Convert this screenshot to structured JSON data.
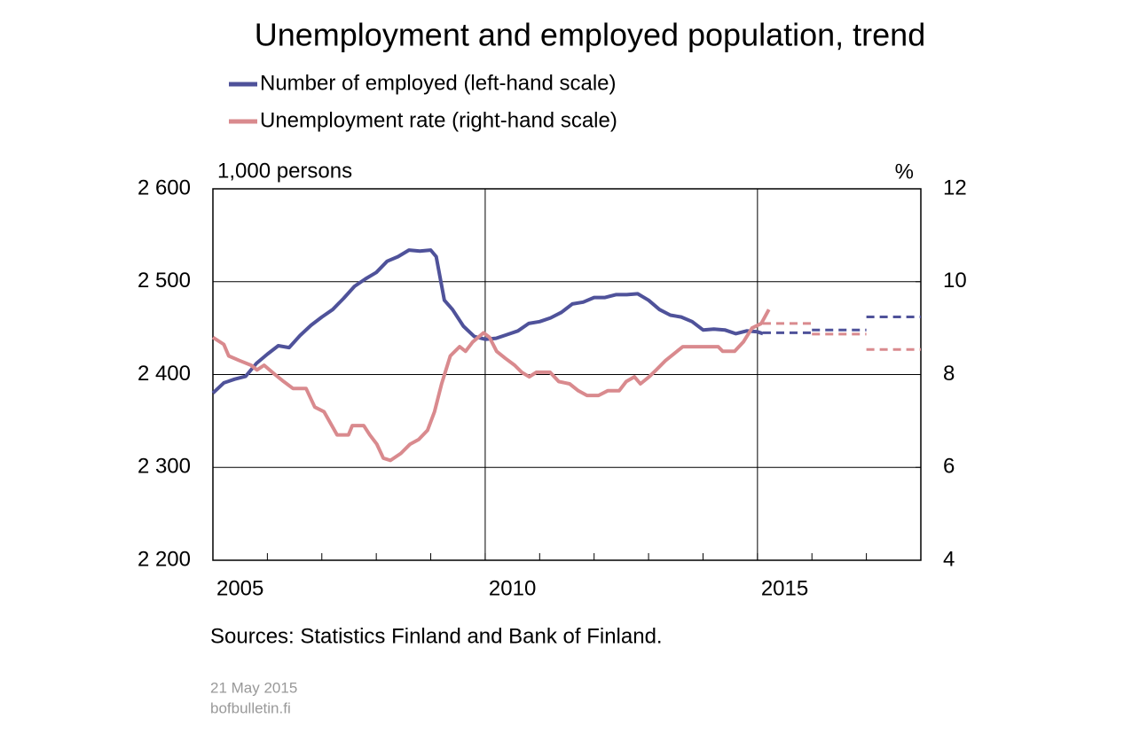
{
  "chart_data": {
    "type": "line",
    "title": "Unemployment and employed population, trend",
    "y_label": "1,000 persons",
    "y2_label": "%",
    "source": "Sources: Statistics Finland and Bank of Finland.",
    "date": "21 May 2015",
    "site": "bofbulletin.fi",
    "xlim": [
      2005,
      2018
    ],
    "xticks": [
      2005,
      2006,
      2007,
      2008,
      2009,
      2010,
      2011,
      2012,
      2013,
      2014,
      2015,
      2016,
      2017,
      2018
    ],
    "xlabels": [
      2005,
      2010,
      2015
    ],
    "xgrid": [
      2010,
      2015
    ],
    "ylim": [
      2200,
      2600
    ],
    "yticks": [
      {
        "value": 2200,
        "label": "2 200"
      },
      {
        "value": 2300,
        "label": "2 300"
      },
      {
        "value": 2400,
        "label": "2 400"
      },
      {
        "value": 2500,
        "label": "2 500"
      },
      {
        "value": 2600,
        "label": "2 600"
      }
    ],
    "y2lim": [
      4,
      12
    ],
    "y2ticks": [
      4,
      6,
      8,
      10,
      12
    ],
    "grid": true,
    "series": [
      {
        "name": "Number of employed (left-hand scale)",
        "color": "#4f529a",
        "x": [
          2005.0,
          2005.2,
          2005.4,
          2005.6,
          2005.8,
          2006.0,
          2006.2,
          2006.4,
          2006.6,
          2006.8,
          2007.0,
          2007.2,
          2007.4,
          2007.6,
          2007.8,
          2008.0,
          2008.2,
          2008.4,
          2008.6,
          2008.8,
          2009.0,
          2009.1,
          2009.25,
          2009.4,
          2009.6,
          2009.8,
          2010.0,
          2010.2,
          2010.4,
          2010.6,
          2010.8,
          2011.0,
          2011.2,
          2011.4,
          2011.6,
          2011.8,
          2012.0,
          2012.2,
          2012.4,
          2012.6,
          2012.8,
          2013.0,
          2013.2,
          2013.4,
          2013.6,
          2013.8,
          2014.0,
          2014.2,
          2014.4,
          2014.6,
          2014.8,
          2015.0,
          2015.1
        ],
        "values": [
          2380,
          2391,
          2395,
          2398,
          2412,
          2422,
          2431,
          2429,
          2442,
          2453,
          2462,
          2470,
          2482,
          2495,
          2503,
          2510,
          2522,
          2527,
          2534,
          2533,
          2534,
          2527,
          2480,
          2470,
          2452,
          2441,
          2438,
          2439,
          2443,
          2447,
          2455,
          2457,
          2461,
          2467,
          2476,
          2478,
          2483,
          2483,
          2486,
          2486,
          2487,
          2480,
          2470,
          2464,
          2462,
          2457,
          2448,
          2449,
          2448,
          2444,
          2447,
          2446,
          2444
        ],
        "forecast": [
          {
            "x": [
              2015.1,
              2016
            ],
            "value": 2445
          },
          {
            "x": [
              2016,
              2017
            ],
            "value": 2448
          },
          {
            "x": [
              2017,
              2018
            ],
            "value": 2462
          }
        ]
      },
      {
        "name": "Unemployment rate (right-hand scale)",
        "color": "#d98a8e",
        "axis": "y2",
        "x": [
          2005.0,
          2005.2,
          2005.29,
          2005.49,
          2005.7,
          2005.81,
          2005.94,
          2006.14,
          2006.3,
          2006.47,
          2006.71,
          2006.87,
          2007.04,
          2007.28,
          2007.49,
          2007.56,
          2007.77,
          2007.88,
          2008.01,
          2008.13,
          2008.26,
          2008.45,
          2008.62,
          2008.78,
          2008.94,
          2009.07,
          2009.2,
          2009.36,
          2009.53,
          2009.64,
          2009.77,
          2009.97,
          2010.08,
          2010.21,
          2010.37,
          2010.54,
          2010.67,
          2010.81,
          2010.94,
          2011.19,
          2011.35,
          2011.55,
          2011.71,
          2011.87,
          2012.08,
          2012.25,
          2012.46,
          2012.59,
          2012.74,
          2012.85,
          2013.01,
          2013.14,
          2013.31,
          2013.47,
          2013.63,
          2013.88,
          2014.28,
          2014.36,
          2014.58,
          2014.74,
          2014.9,
          2015.07,
          2015.21
        ],
        "values": [
          8.8,
          8.65,
          8.4,
          8.3,
          8.2,
          8.1,
          8.2,
          8.0,
          7.85,
          7.7,
          7.7,
          7.3,
          7.2,
          6.7,
          6.7,
          6.9,
          6.9,
          6.7,
          6.5,
          6.2,
          6.15,
          6.3,
          6.5,
          6.6,
          6.8,
          7.2,
          7.8,
          8.4,
          8.6,
          8.5,
          8.7,
          8.9,
          8.8,
          8.5,
          8.35,
          8.2,
          8.05,
          7.95,
          8.05,
          8.05,
          7.85,
          7.8,
          7.65,
          7.55,
          7.55,
          7.65,
          7.65,
          7.85,
          7.95,
          7.8,
          7.95,
          8.1,
          8.3,
          8.45,
          8.6,
          8.6,
          8.6,
          8.5,
          8.5,
          8.7,
          9.0,
          9.1,
          9.4
        ],
        "forecast": [
          {
            "x": [
              2015.1,
              2016
            ],
            "value": 9.1
          },
          {
            "x": [
              2016,
              2017
            ],
            "value": 8.87
          },
          {
            "x": [
              2017,
              2018
            ],
            "value": 8.54
          }
        ]
      }
    ]
  }
}
